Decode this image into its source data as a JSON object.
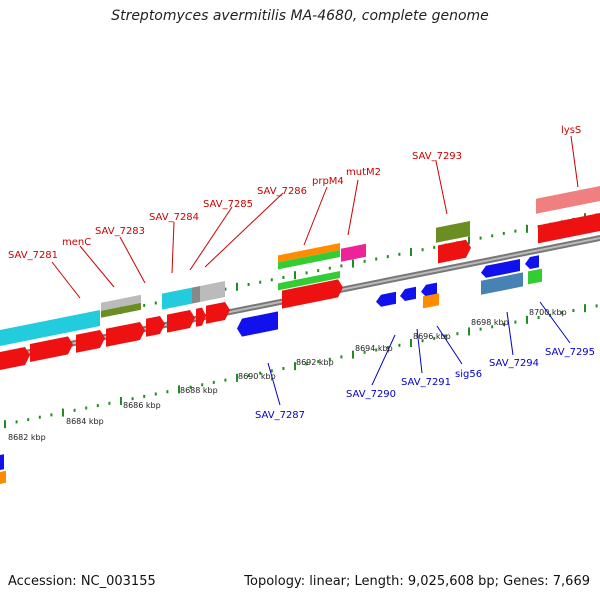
{
  "title": "Streptomyces avermitilis MA-4680, complete genome",
  "footer": {
    "accession": "Accession: NC_003155",
    "stats": "Topology: linear; Length: 9,025,608 bp; Genes: 7,669"
  },
  "scale_labels": [
    "8682 kbp",
    "8684 kbp",
    "8686 kbp",
    "8688 kbp",
    "8690 kbp",
    "8692 kbp",
    "8694 kbp",
    "8696 kbp",
    "8698 kbp",
    "8700 kbp"
  ],
  "top_gene_labels": [
    "SAV_7281",
    "menC",
    "SAV_7283",
    "SAV_7284",
    "SAV_7285",
    "SAV_7286",
    "prpM4",
    "mutM2",
    "SAV_7293",
    "lysS"
  ],
  "bottom_gene_labels": [
    "SAV_7287",
    "SAV_7290",
    "SAV_7291",
    "sig56",
    "SAV_7294",
    "SAV_7295"
  ],
  "colors": {
    "forward_label": "#cc0000",
    "reverse_label": "#0000cc",
    "backbone": "#888888",
    "tick": "#228b22",
    "red": "#ee1111",
    "blue": "#1111ee",
    "cyan": "#22ccdd",
    "olive": "#6b8e23",
    "silver": "#bbbbbb",
    "orange": "#ff8c00",
    "green": "#33cc33",
    "magenta": "#ee2299",
    "salmon": "#f08080",
    "steel": "#4682b4"
  }
}
